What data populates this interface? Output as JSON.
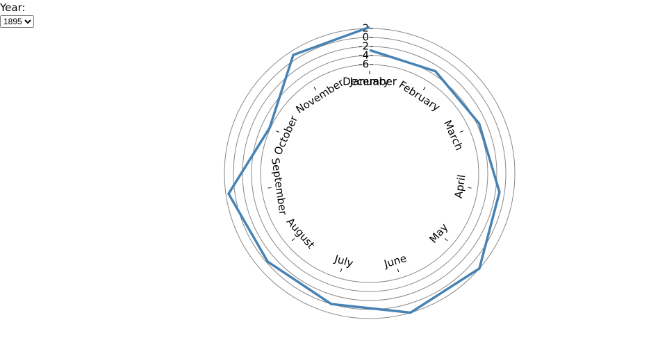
{
  "controls": {
    "year_label": "Year:",
    "year_options": [
      "1895"
    ]
  },
  "chart_data": {
    "type": "radial-line",
    "categories": [
      "January",
      "February",
      "March",
      "April",
      "May",
      "June",
      "July",
      "August",
      "September",
      "October",
      "November",
      "December"
    ],
    "series": [
      {
        "color": "#4682b4",
        "values": [
          -2.8,
          -3.2,
          -3.5,
          -1.1,
          2.0,
          2.0,
          0.0,
          -0.3,
          1.4,
          -5.8,
          1.1,
          2.3
        ]
      }
    ],
    "ylim": [
      -6,
      2
    ],
    "yticks": [
      -6,
      -4,
      -2,
      0,
      2
    ],
    "grid": true
  }
}
